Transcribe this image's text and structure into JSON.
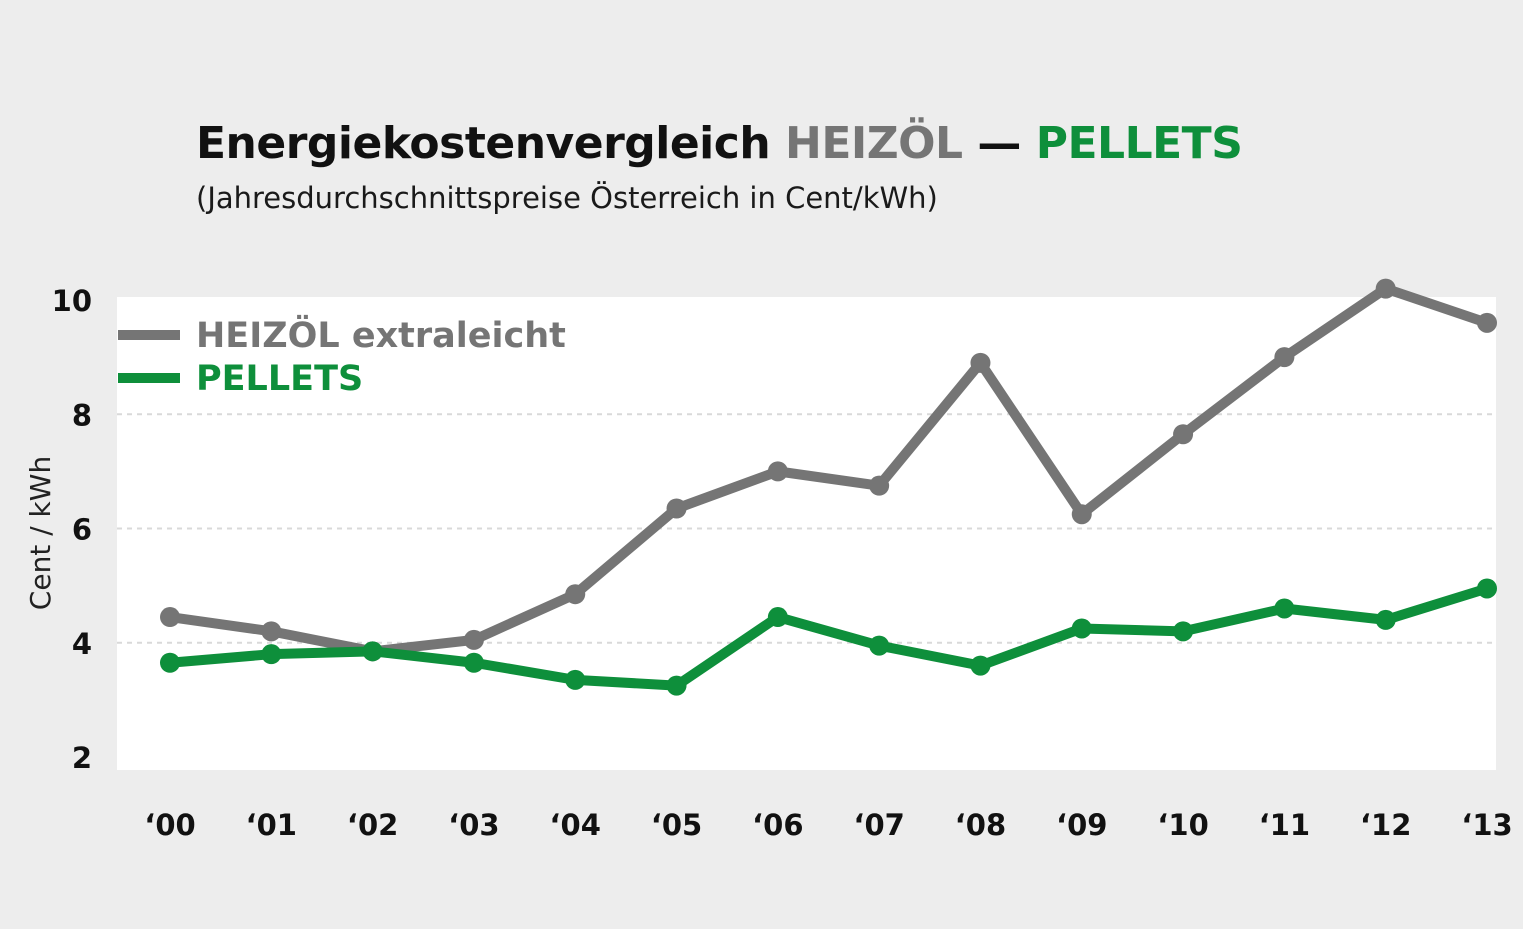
{
  "title": {
    "part1": "Energiekostenvergleich ",
    "part2": "HEIZÖL",
    "part3": " — ",
    "part4": "PELLETS"
  },
  "subtitle": "(Jahresdurchschnittspreise Österreich in Cent/kWh)",
  "colors": {
    "oil": "#757575",
    "pellets": "#0e8f3b",
    "background": "#ededed",
    "plot": "#ffffff",
    "grid": "#d9d9d9"
  },
  "chart_data": {
    "type": "line",
    "title": "Energiekostenvergleich HEIZÖL — PELLETS",
    "subtitle": "(Jahresdurchschnittspreise Österreich in Cent/kWh)",
    "xlabel": "",
    "ylabel": "Cent / kWh",
    "categories": [
      "‘00",
      "‘01",
      "‘02",
      "‘03",
      "‘04",
      "‘05",
      "‘06",
      "‘07",
      "‘08",
      "‘09",
      "‘10",
      "‘11",
      "‘12",
      "‘13"
    ],
    "ylim": [
      2,
      10.1
    ],
    "yticks": [
      2,
      4,
      6,
      8,
      10
    ],
    "grid": true,
    "legend_position": "top-left",
    "series": [
      {
        "name": "HEIZÖL extraleicht",
        "color": "#757575",
        "values": [
          4.45,
          4.2,
          3.85,
          4.05,
          4.85,
          6.35,
          7.0,
          6.75,
          8.9,
          6.25,
          7.65,
          9.0,
          10.2,
          9.6
        ]
      },
      {
        "name": "PELLETS",
        "color": "#0e8f3b",
        "values": [
          3.65,
          3.8,
          3.85,
          3.65,
          3.35,
          3.25,
          4.45,
          3.95,
          3.6,
          4.25,
          4.2,
          4.6,
          4.4,
          4.95
        ]
      }
    ]
  }
}
